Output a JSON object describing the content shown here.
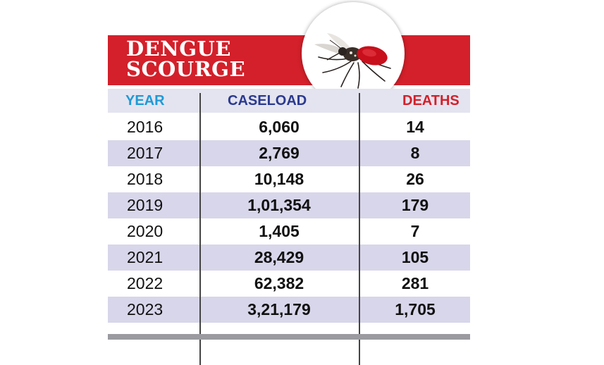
{
  "title": {
    "line1": "DENGUE",
    "line2": "SCOURGE"
  },
  "icons": {
    "photo": "mosquito-icon"
  },
  "colors": {
    "banner": "#d3202a",
    "header_row": "#e4e4f0",
    "alt_row": "#d8d6ea",
    "year_header": "#1f9ad6",
    "caseload_header": "#2b3a8f",
    "deaths_header": "#d3202a"
  },
  "chart_data": {
    "type": "table",
    "title": "DENGUE SCOURGE",
    "columns": [
      "YEAR",
      "CASELOAD",
      "DEATHS"
    ],
    "rows": [
      {
        "year": "2016",
        "caseload": "6,060",
        "deaths": "14"
      },
      {
        "year": "2017",
        "caseload": "2,769",
        "deaths": "8"
      },
      {
        "year": "2018",
        "caseload": "10,148",
        "deaths": "26"
      },
      {
        "year": "2019",
        "caseload": "1,01,354",
        "deaths": "179"
      },
      {
        "year": "2020",
        "caseload": "1,405",
        "deaths": "7"
      },
      {
        "year": "2021",
        "caseload": "28,429",
        "deaths": "105"
      },
      {
        "year": "2022",
        "caseload": "62,382",
        "deaths": "281"
      },
      {
        "year": "2023",
        "caseload": "3,21,179",
        "deaths": "1,705"
      }
    ]
  }
}
